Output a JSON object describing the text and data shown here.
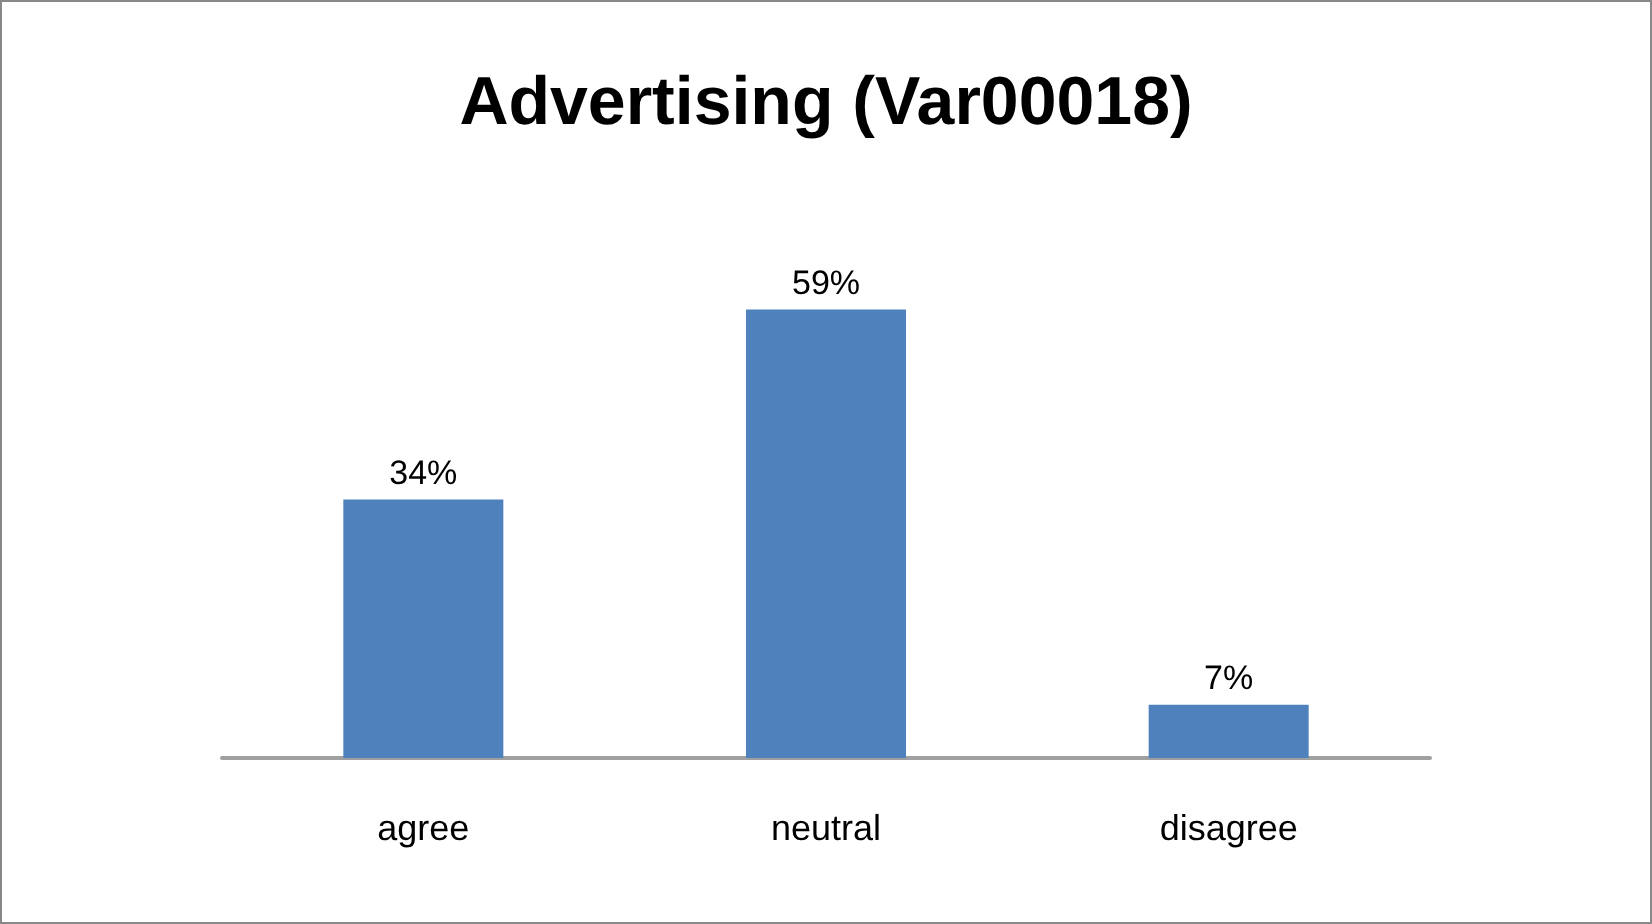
{
  "chart_data": {
    "type": "bar",
    "title": "Advertising (Var00018)",
    "categories": [
      "agree",
      "neutral",
      "disagree"
    ],
    "values": [
      34,
      59,
      7
    ],
    "value_labels": [
      "34%",
      "59%",
      "7%"
    ],
    "color": "#4f81bd"
  }
}
